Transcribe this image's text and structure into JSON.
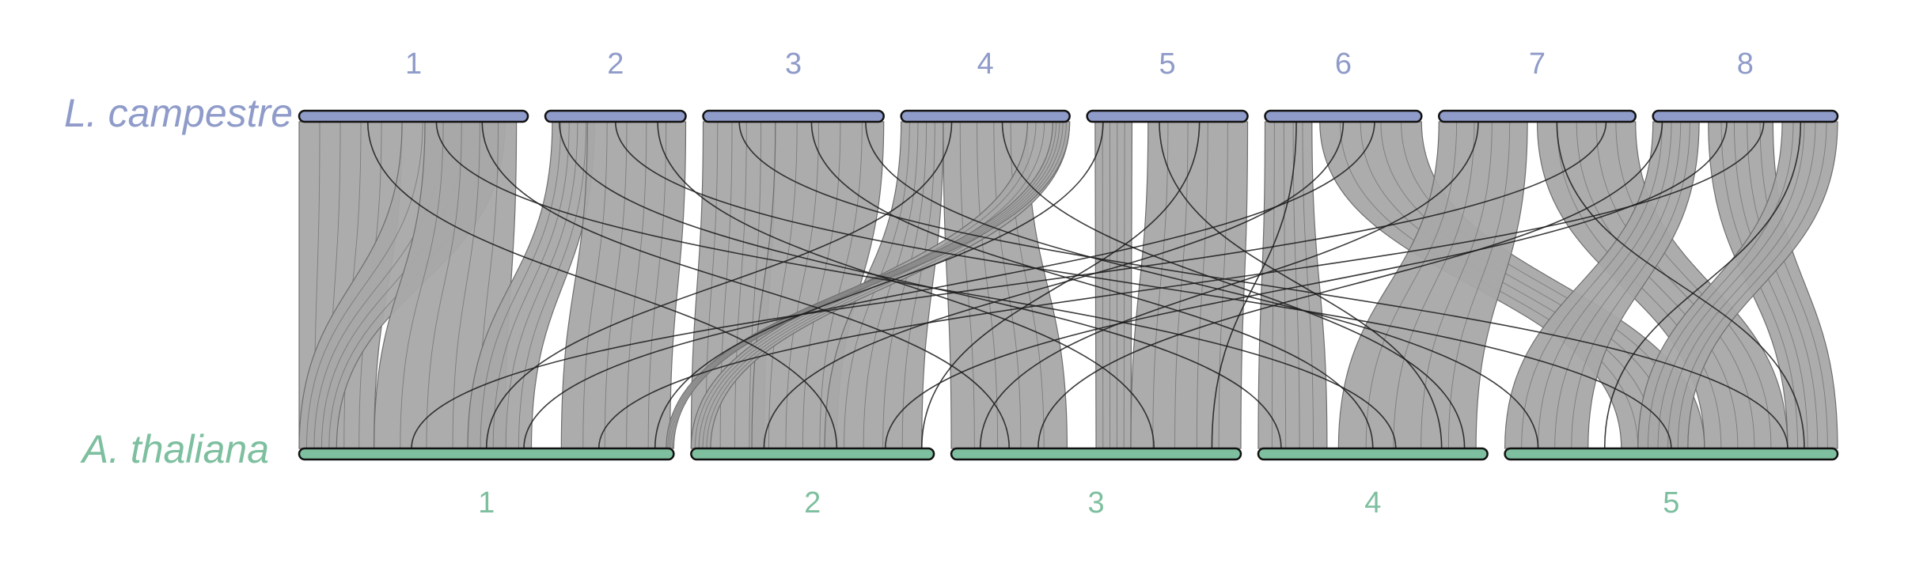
{
  "title": "",
  "top_genome": {
    "species": "L. campestre",
    "color": "#8f9bc9",
    "chromosomes": [
      {
        "name": "1",
        "length": 28.5
      },
      {
        "name": "2",
        "length": 17.5
      },
      {
        "name": "3",
        "length": 22.5
      },
      {
        "name": "4",
        "length": 21.0
      },
      {
        "name": "5",
        "length": 20.0
      },
      {
        "name": "6",
        "length": 19.5
      },
      {
        "name": "7",
        "length": 24.5
      },
      {
        "name": "8",
        "length": 23.0
      }
    ]
  },
  "bottom_genome": {
    "species": "A. thaliana",
    "color": "#7dbf9f",
    "chromosomes": [
      {
        "name": "1",
        "length": 30.4
      },
      {
        "name": "2",
        "length": 19.7
      },
      {
        "name": "3",
        "length": 23.5
      },
      {
        "name": "4",
        "length": 18.6
      },
      {
        "name": "5",
        "length": 27.0
      }
    ]
  },
  "ribbon_color": "#a8a8a8",
  "synteny_blocks": [
    {
      "top": "1",
      "top_range": [
        0.0,
        0.45
      ],
      "bottom": "1",
      "bottom_range": [
        0.0,
        0.2
      ]
    },
    {
      "top": "1",
      "top_range": [
        0.45,
        0.9
      ],
      "bottom": "1",
      "bottom_range": [
        0.0,
        0.1
      ]
    },
    {
      "top": "1",
      "top_range": [
        0.55,
        0.95
      ],
      "bottom": "1",
      "bottom_range": [
        0.2,
        0.55
      ]
    },
    {
      "top": "2",
      "top_range": [
        0.05,
        0.35
      ],
      "bottom": "1",
      "bottom_range": [
        0.45,
        0.62
      ]
    },
    {
      "top": "2",
      "top_range": [
        0.3,
        1.0
      ],
      "bottom": "1",
      "bottom_range": [
        0.7,
        0.99
      ]
    },
    {
      "top": "3",
      "top_range": [
        0.0,
        0.4
      ],
      "bottom": "2",
      "bottom_range": [
        0.0,
        0.3
      ]
    },
    {
      "top": "3",
      "top_range": [
        0.4,
        1.0
      ],
      "bottom": "2",
      "bottom_range": [
        0.25,
        0.6
      ]
    },
    {
      "top": "4",
      "top_range": [
        0.0,
        0.25
      ],
      "bottom": "2",
      "bottom_range": [
        0.55,
        0.95
      ]
    },
    {
      "top": "4",
      "top_range": [
        0.25,
        0.75
      ],
      "bottom": "3",
      "bottom_range": [
        0.0,
        0.4
      ]
    },
    {
      "top": "4",
      "top_range": [
        0.75,
        1.0
      ],
      "bottom": "2",
      "bottom_range": [
        0.0,
        0.08
      ]
    },
    {
      "top": "5",
      "top_range": [
        0.05,
        0.28
      ],
      "bottom": "3",
      "bottom_range": [
        0.5,
        0.62
      ]
    },
    {
      "top": "5",
      "top_range": [
        0.38,
        1.0
      ],
      "bottom": "3",
      "bottom_range": [
        0.62,
        1.0
      ]
    },
    {
      "top": "6",
      "top_range": [
        0.0,
        0.3
      ],
      "bottom": "4",
      "bottom_range": [
        0.0,
        0.3
      ]
    },
    {
      "top": "6",
      "top_range": [
        0.35,
        1.0
      ],
      "bottom": "5",
      "bottom_range": [
        0.35,
        0.6
      ]
    },
    {
      "top": "7",
      "top_range": [
        0.0,
        0.45
      ],
      "bottom": "4",
      "bottom_range": [
        0.35,
        0.95
      ]
    },
    {
      "top": "7",
      "top_range": [
        0.5,
        1.0
      ],
      "bottom": "5",
      "bottom_range": [
        0.6,
        0.85
      ]
    },
    {
      "top": "8",
      "top_range": [
        0.0,
        0.25
      ],
      "bottom": "5",
      "bottom_range": [
        0.0,
        0.25
      ]
    },
    {
      "top": "8",
      "top_range": [
        0.3,
        0.65
      ],
      "bottom": "5",
      "bottom_range": [
        0.85,
        1.0
      ]
    },
    {
      "top": "8",
      "top_range": [
        0.7,
        1.0
      ],
      "bottom": "5",
      "bottom_range": [
        0.4,
        0.55
      ]
    },
    {
      "top": "4",
      "top_range": [
        0.9,
        1.0
      ],
      "bottom": "1",
      "bottom_range": [
        0.98,
        1.0
      ]
    }
  ],
  "translocations": [
    {
      "top": "1",
      "pos": 0.8,
      "bottom": "3",
      "bpos": 0.2
    },
    {
      "top": "2",
      "pos": 0.1,
      "bottom": "4",
      "bpos": 0.1
    },
    {
      "top": "2",
      "pos": 0.5,
      "bottom": "5",
      "bpos": 0.5
    },
    {
      "top": "3",
      "pos": 0.2,
      "bottom": "5",
      "bpos": 0.85
    },
    {
      "top": "3",
      "pos": 0.6,
      "bottom": "4",
      "bpos": 0.5
    },
    {
      "top": "4",
      "pos": 0.3,
      "bottom": "1",
      "bpos": 0.5
    },
    {
      "top": "5",
      "pos": 0.1,
      "bottom": "1",
      "bpos": 0.95
    },
    {
      "top": "5",
      "pos": 0.45,
      "bottom": "4",
      "bpos": 0.8
    },
    {
      "top": "6",
      "pos": 0.5,
      "bottom": "2",
      "bpos": 0.3
    },
    {
      "top": "6",
      "pos": 0.7,
      "bottom": "1",
      "bpos": 0.6
    },
    {
      "top": "7",
      "pos": 0.2,
      "bottom": "3",
      "bpos": 0.1
    },
    {
      "top": "7",
      "pos": 0.6,
      "bottom": "5",
      "bpos": 0.9
    },
    {
      "top": "8",
      "pos": 0.05,
      "bottom": "3",
      "bpos": 0.3
    },
    {
      "top": "8",
      "pos": 0.4,
      "bottom": "2",
      "bpos": 0.8
    },
    {
      "top": "8",
      "pos": 0.8,
      "bottom": "5",
      "bpos": 0.3
    },
    {
      "top": "1",
      "pos": 0.3,
      "bottom": "2",
      "bpos": 0.6
    },
    {
      "top": "2",
      "pos": 0.8,
      "bottom": "3",
      "bpos": 0.7
    },
    {
      "top": "3",
      "pos": 0.9,
      "bottom": "5",
      "bpos": 0.1
    },
    {
      "top": "4",
      "pos": 0.6,
      "bottom": "4",
      "bpos": 0.9
    },
    {
      "top": "6",
      "pos": 0.2,
      "bottom": "3",
      "bpos": 0.9
    },
    {
      "top": "7",
      "pos": 0.85,
      "bottom": "1",
      "bpos": 0.3
    },
    {
      "top": "5",
      "pos": 0.7,
      "bottom": "2",
      "bpos": 0.95
    },
    {
      "top": "1",
      "pos": 0.6,
      "bottom": "4",
      "bpos": 0.6
    },
    {
      "top": "8",
      "pos": 0.6,
      "bottom": "1",
      "bpos": 0.8
    }
  ]
}
